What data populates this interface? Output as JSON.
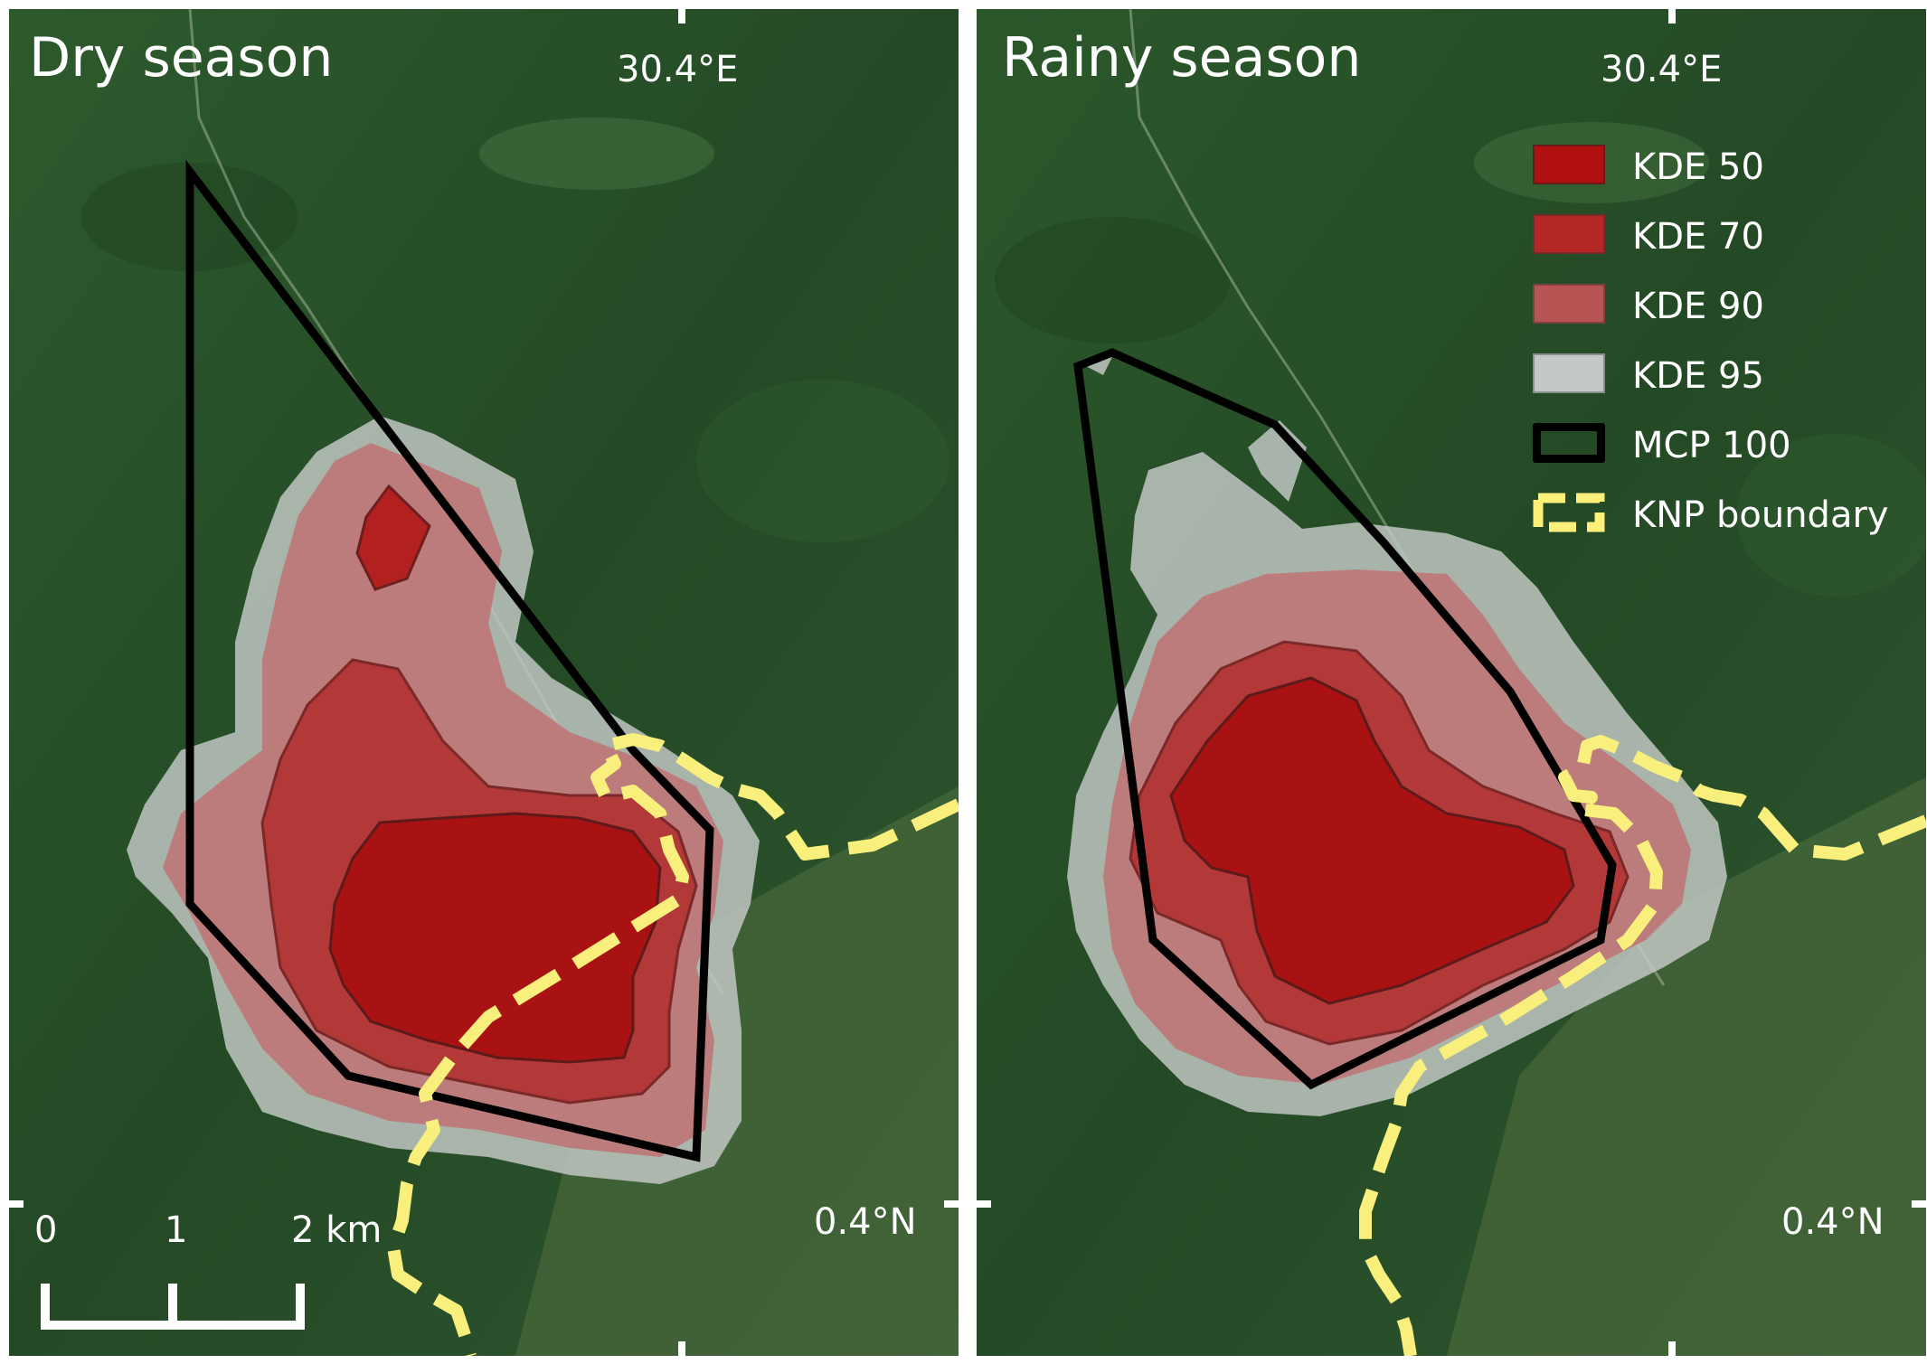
{
  "panels": [
    {
      "title": "Dry season",
      "lon_label": "30.4°E",
      "lat_label": "0.4°N"
    },
    {
      "title": "Rainy season",
      "lon_label": "30.4°E",
      "lat_label": "0.4°N"
    }
  ],
  "legend": [
    {
      "label": "KDE 50",
      "fill": "#b01010"
    },
    {
      "label": "KDE 70",
      "fill": "#b52828"
    },
    {
      "label": "KDE 90",
      "fill": "#b85454"
    },
    {
      "label": "KDE 95",
      "fill": "#c4c8c6"
    },
    {
      "label": "MCP 100",
      "stroke": "#000000"
    },
    {
      "label": "KNP boundary",
      "stroke": "#fff07a"
    }
  ],
  "scale_bar": {
    "labels": [
      "0",
      "1",
      "2 km"
    ]
  },
  "colors": {
    "forest": "#274d27",
    "boundary": "#f8ef7c",
    "mcp": "#000000"
  }
}
